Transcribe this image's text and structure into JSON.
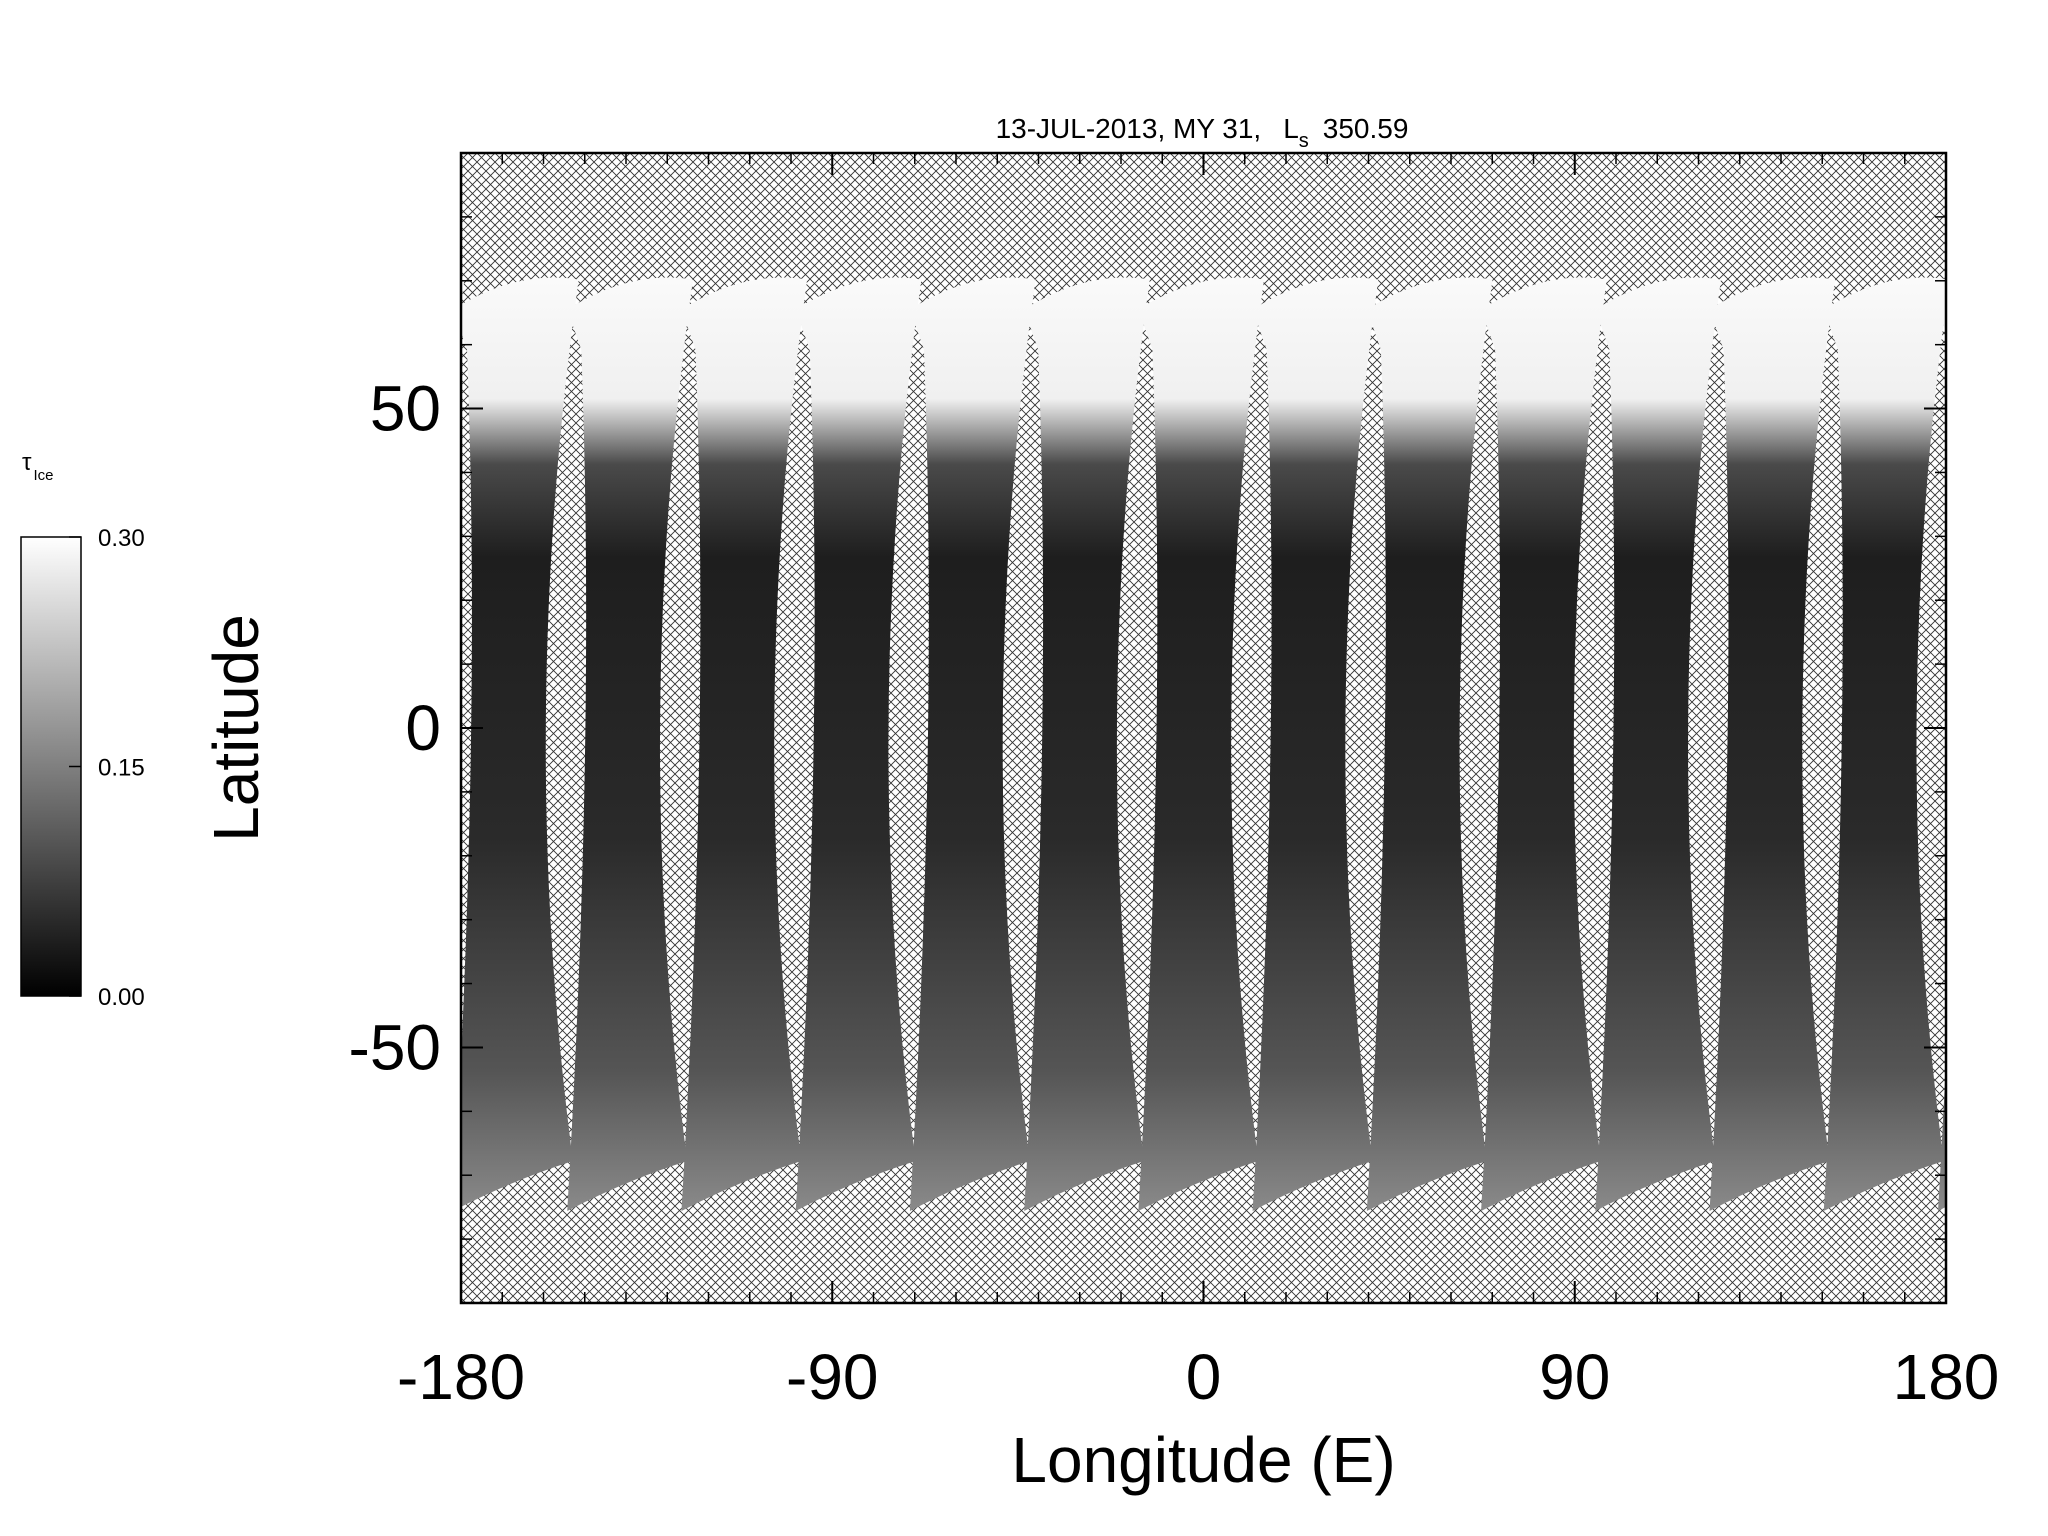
{
  "chart_data": {
    "type": "map",
    "title": {
      "text": "13-JUL-2013, MY 31,",
      "ls": "L",
      "ls_sub": "s",
      "ls_value": "350.59"
    },
    "xlabel": "Longitude (E)",
    "ylabel": "Latitude",
    "xlim": [
      -180,
      180
    ],
    "ylim": [
      -90,
      90
    ],
    "xticks": [
      -180,
      -90,
      0,
      90,
      180
    ],
    "yticks": [
      -50,
      0,
      50
    ],
    "xminorticks": [
      -170,
      -160,
      -150,
      -140,
      -130,
      -120,
      -110,
      -100,
      -80,
      -70,
      -60,
      -50,
      -40,
      -30,
      -20,
      -10,
      10,
      20,
      30,
      40,
      50,
      60,
      70,
      80,
      100,
      110,
      120,
      130,
      140,
      150,
      160,
      170
    ],
    "yminorticks": [
      -80,
      -70,
      -60,
      -40,
      -30,
      -20,
      -10,
      10,
      20,
      30,
      40,
      60,
      70,
      80
    ],
    "colorbar": {
      "label": "τ",
      "label_sub": "Ice",
      "lim": [
        0,
        0.3
      ],
      "ticks": [
        {
          "value": 0,
          "label": "0.00"
        },
        {
          "value": 0.15,
          "label": "0.15"
        },
        {
          "value": 0.3,
          "label": "0.30"
        }
      ],
      "colors": [
        "#000000",
        "#ffffff"
      ]
    }
  }
}
